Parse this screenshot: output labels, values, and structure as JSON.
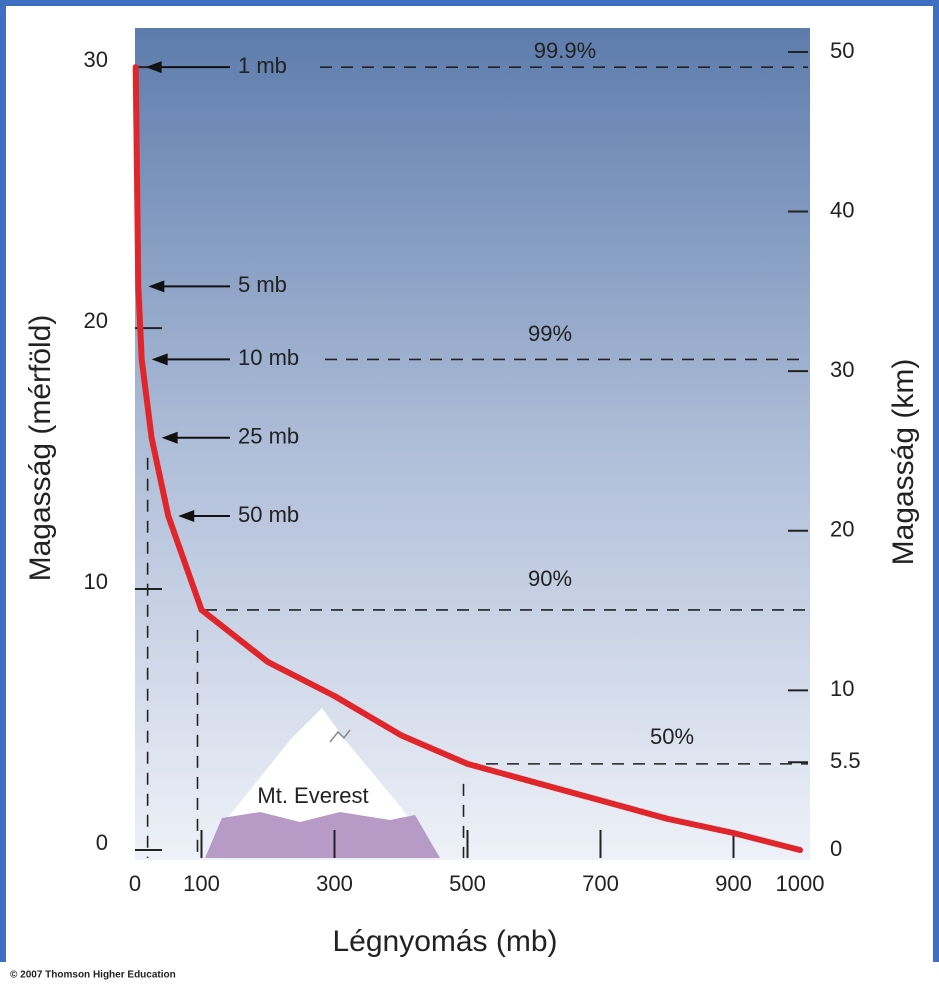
{
  "chart_data": {
    "type": "line",
    "x_label": "Légnyomás (mb)",
    "y_label": "Magasság (mérföld)",
    "y2_label": "Magasság (km)",
    "x": [
      1,
      5,
      10,
      25,
      50,
      100,
      200,
      300,
      400,
      500,
      600,
      700,
      800,
      900,
      1000
    ],
    "series": [
      {
        "name": "Légnyomás",
        "color": "#e0262a",
        "values": [
          30,
          21.6,
          18.8,
          15.8,
          12.8,
          9.2,
          7.2,
          5.9,
          4.4,
          3.3,
          2.6,
          1.9,
          1.2,
          0.65,
          0
        ]
      }
    ],
    "xlim": [
      0,
      1000
    ],
    "xticks": [
      0,
      100,
      300,
      500,
      700,
      900,
      1000
    ],
    "ylim": [
      0,
      31.5
    ],
    "yticks": [
      0,
      10,
      20,
      30
    ],
    "y2lim": [
      0,
      51.5
    ],
    "y2ticks": [
      0,
      5.5,
      10,
      20,
      30,
      40,
      50
    ],
    "pressure_labels": [
      "1 mb",
      "5 mb",
      "10 mb",
      "25 mb",
      "50 mb"
    ],
    "percent_labels": [
      "99.9%",
      "99%",
      "90%",
      "50%"
    ],
    "everest_label": "Mt. Everest",
    "copyright": "© 2007 Thomson Higher Education"
  }
}
